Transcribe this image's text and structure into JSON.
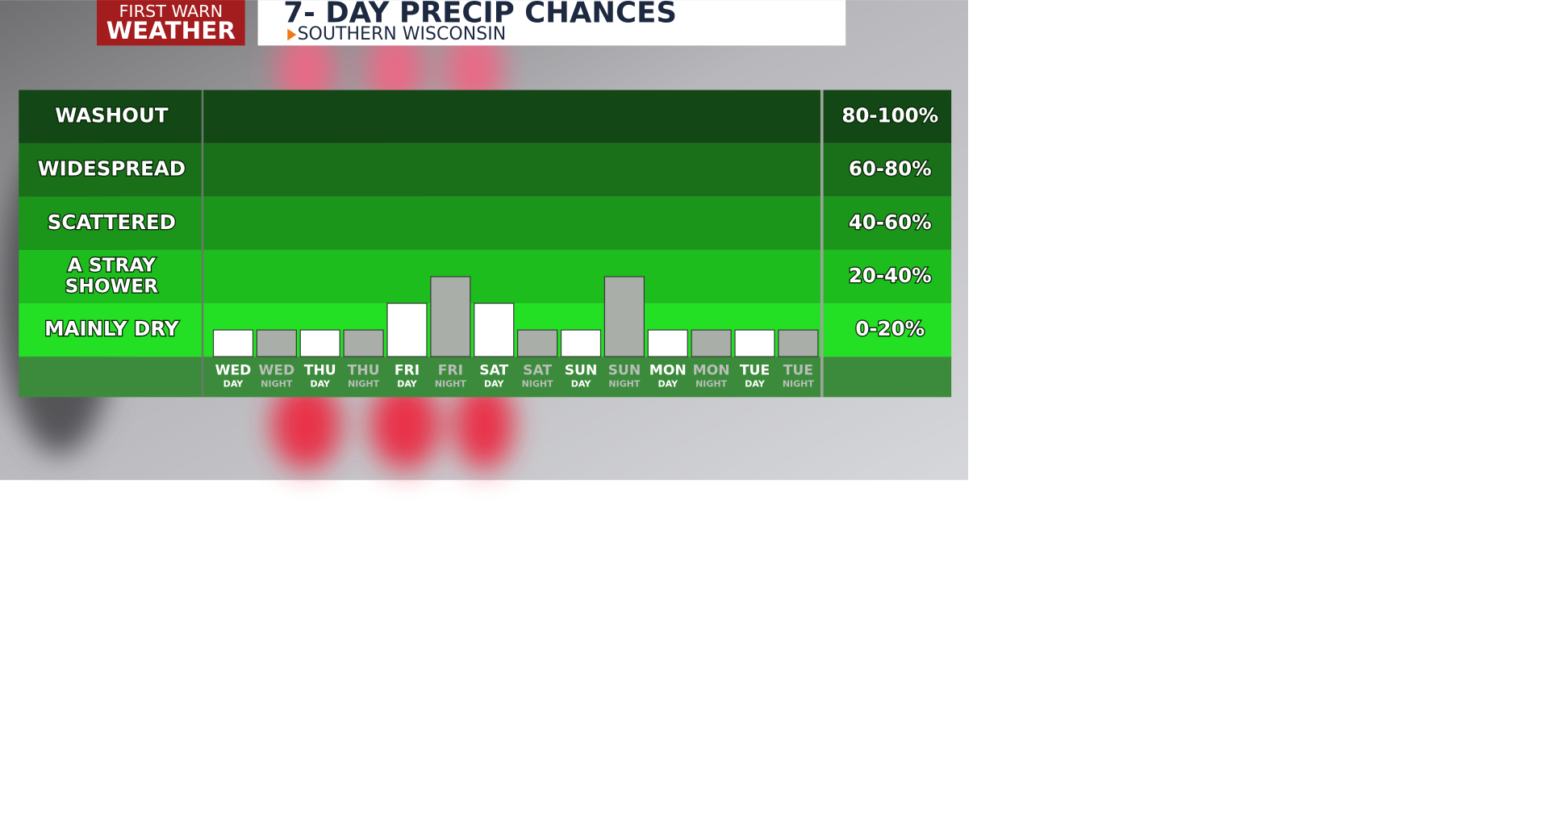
{
  "header": {
    "logo_line1": "FIRST WARN",
    "logo_line2": "WEATHER",
    "title": "7- DAY PRECIP CHANCES",
    "subtitle": "SOUTHERN WISCONSIN"
  },
  "chart_data": {
    "type": "bar",
    "categories": [
      "WED",
      "WED",
      "THU",
      "THU",
      "FRI",
      "FRI",
      "SAT",
      "SAT",
      "SUN",
      "SUN",
      "MON",
      "MON",
      "TUE",
      "TUE"
    ],
    "sublabels": [
      "DAY",
      "NIGHT",
      "DAY",
      "NIGHT",
      "DAY",
      "NIGHT",
      "DAY",
      "NIGHT",
      "DAY",
      "NIGHT",
      "DAY",
      "NIGHT",
      "DAY",
      "NIGHT"
    ],
    "values": [
      10,
      10,
      10,
      10,
      20,
      30,
      20,
      10,
      10,
      30,
      10,
      10,
      10,
      10
    ],
    "bar_colors": [
      "#ffffff",
      "#a9aea9",
      "#ffffff",
      "#a9aea9",
      "#ffffff",
      "#a9aea9",
      "#ffffff",
      "#a9aea9",
      "#ffffff",
      "#a9aea9",
      "#ffffff",
      "#a9aea9",
      "#ffffff",
      "#a9aea9"
    ],
    "label_colors": [
      "#ffffff",
      "#b9beb9",
      "#ffffff",
      "#b9beb9",
      "#ffffff",
      "#b9beb9",
      "#ffffff",
      "#b9beb9",
      "#ffffff",
      "#b9beb9",
      "#ffffff",
      "#b9beb9",
      "#ffffff",
      "#b9beb9"
    ],
    "ylim": [
      0,
      100
    ],
    "bands": [
      {
        "label": [
          "WASHOUT"
        ],
        "range": "80-100%",
        "from": 80,
        "to": 100,
        "color": "#134715"
      },
      {
        "label": [
          "WIDESPREAD"
        ],
        "range": "60-80%",
        "from": 60,
        "to": 80,
        "color": "#197019"
      },
      {
        "label": [
          "SCATTERED"
        ],
        "range": "40-60%",
        "from": 40,
        "to": 60,
        "color": "#1b961b"
      },
      {
        "label": [
          "A STRAY",
          "SHOWER"
        ],
        "range": "20-40%",
        "from": 20,
        "to": 40,
        "color": "#1ebd1e"
      },
      {
        "label": [
          "MAINLY DRY"
        ],
        "range": "0-20%",
        "from": 0,
        "to": 20,
        "color": "#24e024"
      }
    ]
  }
}
